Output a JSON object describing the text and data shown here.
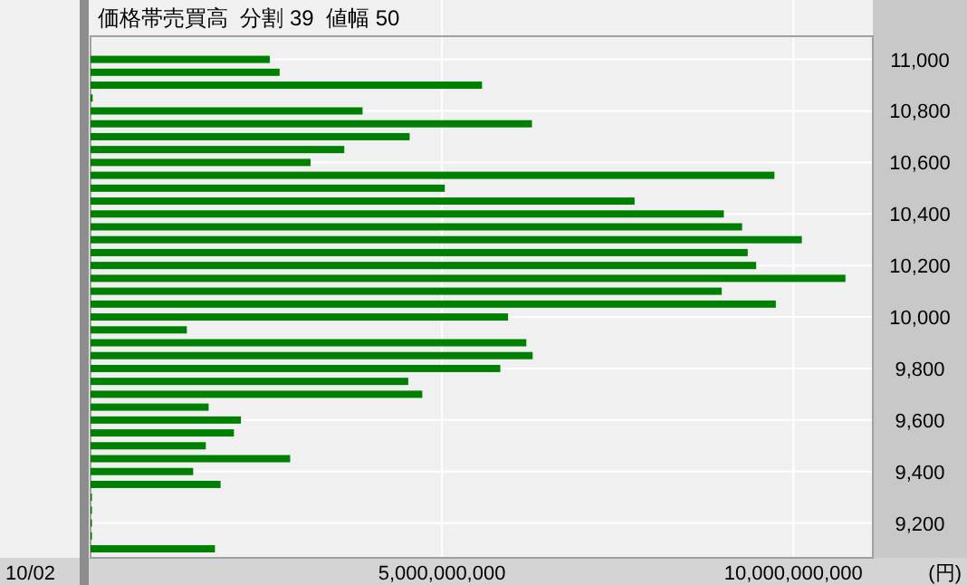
{
  "chart_data": {
    "type": "bar",
    "orientation": "horizontal",
    "title": "価格帯売買高  分割 39  値幅 50",
    "xlabel": "(円)",
    "annotations": [
      "10/02"
    ],
    "x": [
      11000,
      10950,
      10900,
      10850,
      10800,
      10750,
      10700,
      10650,
      10600,
      10550,
      10500,
      10450,
      10400,
      10350,
      10300,
      10250,
      10200,
      10150,
      10100,
      10050,
      10000,
      9950,
      9900,
      9850,
      9800,
      9750,
      9700,
      9650,
      9600,
      9550,
      9500,
      9450,
      9400,
      9350,
      9300,
      9250,
      9200,
      9150,
      9100
    ],
    "values": [
      2550000000,
      2690000000,
      5570000000,
      30000000,
      3870000000,
      6280000000,
      4540000000,
      3610000000,
      3130000000,
      9730000000,
      5040000000,
      7740000000,
      9010000000,
      9270000000,
      10120000000,
      9350000000,
      9470000000,
      10740000000,
      8980000000,
      9750000000,
      5940000000,
      1370000000,
      6200000000,
      6290000000,
      5830000000,
      4520000000,
      4720000000,
      1680000000,
      2140000000,
      2040000000,
      1640000000,
      2840000000,
      1460000000,
      1850000000,
      20000000,
      20000000,
      20000000,
      20000000,
      1770000000
    ],
    "color": "#008000",
    "xlim": [
      0,
      11130000000
    ],
    "xticks": [
      {
        "value": 5000000000,
        "label": "5,000,000,000"
      },
      {
        "value": 10000000000,
        "label": "10,000,000,000"
      }
    ],
    "ylim": [
      9065,
      11090
    ],
    "yticks": [
      {
        "value": 9200,
        "label": "9,200"
      },
      {
        "value": 9400,
        "label": "9,400"
      },
      {
        "value": 9600,
        "label": "9,600"
      },
      {
        "value": 9800,
        "label": "9,800"
      },
      {
        "value": 10000,
        "label": "10,000"
      },
      {
        "value": 10200,
        "label": "10,200"
      },
      {
        "value": 10400,
        "label": "10,400"
      },
      {
        "value": 10600,
        "label": "10,600"
      },
      {
        "value": 10800,
        "label": "10,800"
      },
      {
        "value": 11000,
        "label": "11,000"
      }
    ],
    "grid": true
  }
}
